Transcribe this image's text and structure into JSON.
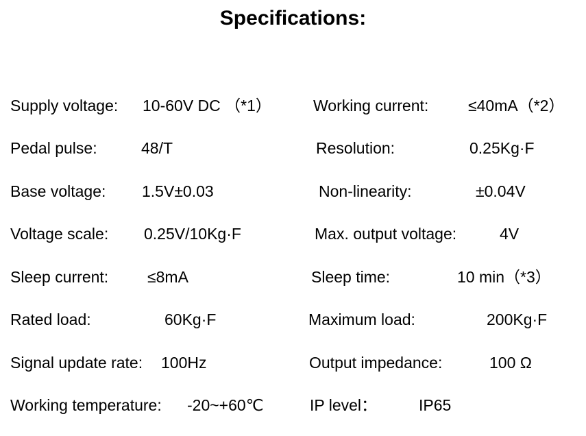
{
  "title": "Specifications:",
  "left": [
    {
      "label": "Supply voltage:",
      "value": "10-60V DC （*1）"
    },
    {
      "label": "Pedal pulse:",
      "value": "48/T"
    },
    {
      "label": "Base voltage:",
      "value": "1.5V±0.03"
    },
    {
      "label": "Voltage scale:",
      "value": "0.25V/10Kg·F"
    },
    {
      "label": "Sleep current:",
      "value": "≤8mA"
    },
    {
      "label": "Rated load:",
      "value": "60Kg·F"
    },
    {
      "label": "Signal update rate:",
      "value": "100Hz"
    },
    {
      "label": "Working temperature:",
      "value": "-20~+60℃"
    }
  ],
  "right": [
    {
      "label": "Working current:",
      "value": "≤40mA（*2）"
    },
    {
      "label": "Resolution:",
      "value": "0.25Kg·F"
    },
    {
      "label": "Non-linearity:",
      "value": "±0.04V"
    },
    {
      "label": "Max. output voltage:",
      "value": "4V"
    },
    {
      "label": "Sleep time:",
      "value": "10 min（*3）"
    },
    {
      "label": "Maximum load:",
      "value": "200Kg·F"
    },
    {
      "label": "Output impedance:",
      "value": "100 Ω"
    },
    {
      "label": "IP level：",
      "value": "IP65"
    }
  ]
}
